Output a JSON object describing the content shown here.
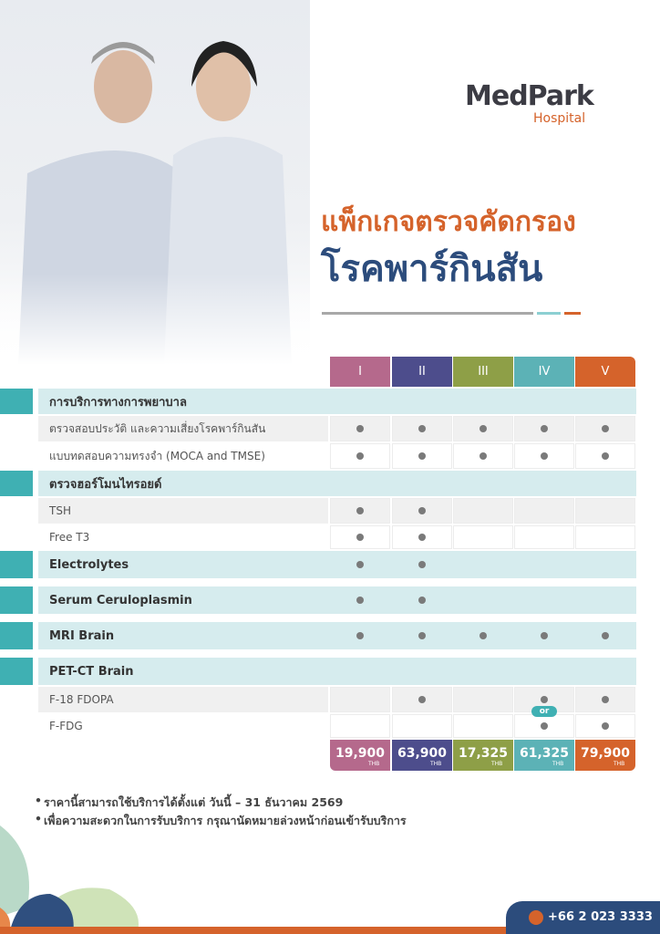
{
  "header": {
    "brand": "MedPark",
    "sub": "Hospital"
  },
  "title": {
    "line1": "แพ็กเกจตรวจคัดกรอง",
    "line2": "โรคพาร์กินสัน"
  },
  "table": {
    "columns": [
      {
        "label": "I",
        "color": "#b5698c"
      },
      {
        "label": "II",
        "color": "#4d4d8c"
      },
      {
        "label": "III",
        "color": "#8e9f47"
      },
      {
        "label": "IV",
        "color": "#5cb2b6"
      },
      {
        "label": "V",
        "color": "#d5632b"
      }
    ],
    "rows": [
      {
        "label": "การบริการทางการพยาบาล",
        "kind": "section",
        "checks": [
          false,
          false,
          false,
          false,
          false
        ]
      },
      {
        "label": "ตรวจสอบประวัติ และความเสี่ยงโรคพาร์กินสัน",
        "kind": "item",
        "checks": [
          true,
          true,
          true,
          true,
          true
        ]
      },
      {
        "label": "แบบทดสอบความทรงจำ (MOCA and TMSE)",
        "kind": "item",
        "checks": [
          true,
          true,
          true,
          true,
          true
        ]
      },
      {
        "label": "ตรวจฮอร์โมนไทรอยด์",
        "kind": "section",
        "checks": [
          false,
          false,
          false,
          false,
          false
        ]
      },
      {
        "label": "TSH",
        "kind": "item",
        "checks": [
          true,
          true,
          false,
          false,
          false
        ]
      },
      {
        "label": "Free T3",
        "kind": "item",
        "checks": [
          true,
          true,
          false,
          false,
          false
        ]
      },
      {
        "label": "Electrolytes",
        "kind": "section",
        "checks": [
          true,
          true,
          false,
          false,
          false
        ]
      },
      {
        "label": "Serum Ceruloplasmin",
        "kind": "section",
        "checks": [
          true,
          true,
          false,
          false,
          false
        ]
      },
      {
        "label": "MRI Brain",
        "kind": "section",
        "checks": [
          true,
          true,
          true,
          true,
          true
        ]
      },
      {
        "label": "PET-CT Brain",
        "kind": "section",
        "checks": [
          false,
          false,
          false,
          false,
          false
        ]
      },
      {
        "label": "F-18 FDOPA",
        "kind": "item",
        "checks": [
          false,
          true,
          false,
          true,
          true
        ]
      },
      {
        "label": "F-FDG",
        "kind": "item",
        "checks": [
          false,
          false,
          false,
          true,
          true
        ]
      }
    ],
    "or_label": "or",
    "prices": [
      "19,900",
      "63,900",
      "17,325",
      "61,325",
      "79,900"
    ],
    "currency": "THB"
  },
  "notes": [
    "ราคานี้สามารถใช้บริการได้ตั้งแต่ วันนี้ – 31 ธันวาคม 2569",
    "เพื่อความสะดวกในการรับบริการ กรุณานัดหมายล่วงหน้าก่อนเข้ารับบริการ"
  ],
  "phone": "+66 2 023 3333"
}
